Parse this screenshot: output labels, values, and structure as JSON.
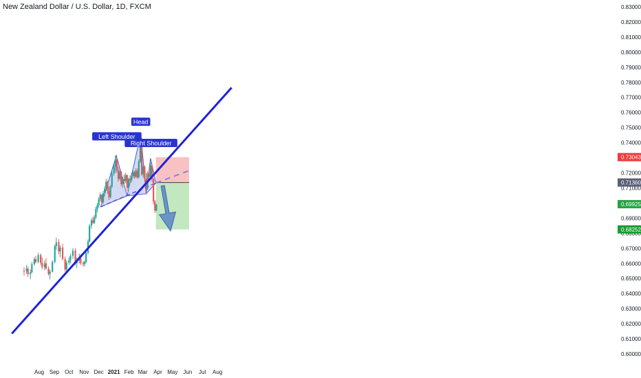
{
  "header": {
    "title": "New Zealand Dollar / U.S. Dollar, 1D, FXCM"
  },
  "colors": {
    "up": "#26a69a",
    "down": "#ef5350",
    "trendline": "#1e22d6",
    "pattern_fill": "#c5cdf0",
    "pattern_stroke": "#4a55d6",
    "stop_zone": "#f8b7b7",
    "target_zone": "#b8e3b4",
    "arrow": "#5b86c6"
  },
  "chart_data": {
    "type": "candlestick",
    "ylim": [
      0.595,
      0.833
    ],
    "yticks": [
      "0.83000",
      "0.82000",
      "0.81000",
      "0.80000",
      "0.79000",
      "0.78000",
      "0.77000",
      "0.76000",
      "0.75000",
      "0.74000",
      "0.73000",
      "0.72000",
      "0.71000",
      "0.70000",
      "0.69000",
      "0.68000",
      "0.67000",
      "0.66000",
      "0.65000",
      "0.64000",
      "0.63000",
      "0.62000",
      "0.61000",
      "0.60000"
    ],
    "xticks": [
      {
        "label": "Aug",
        "date": "2020-08-01"
      },
      {
        "label": "Sep",
        "date": "2020-09-01"
      },
      {
        "label": "Oct",
        "date": "2020-10-01"
      },
      {
        "label": "Nov",
        "date": "2020-11-01"
      },
      {
        "label": "Dec",
        "date": "2020-12-01"
      },
      {
        "label": "2021",
        "date": "2021-01-01"
      },
      {
        "label": "Feb",
        "date": "2021-02-01"
      },
      {
        "label": "Mar",
        "date": "2021-03-01"
      },
      {
        "label": "Apr",
        "date": "2021-04-01"
      },
      {
        "label": "May",
        "date": "2021-05-01"
      },
      {
        "label": "Jun",
        "date": "2021-06-01"
      },
      {
        "label": "Jul",
        "date": "2021-07-01"
      },
      {
        "label": "Aug",
        "date": "2021-08-01"
      }
    ],
    "price_badges": [
      {
        "label": "0.73043",
        "value": 0.73043,
        "color": "#ef3b3b"
      },
      {
        "label": "0.71360",
        "value": 0.7136,
        "color": "#596076"
      },
      {
        "label": "0.69925",
        "value": 0.69925,
        "color": "#26a343"
      },
      {
        "label": "0.68252",
        "value": 0.68252,
        "color": "#1a9e32"
      }
    ],
    "pattern_labels": [
      {
        "text": "Left Shoulder",
        "date": "2021-01-07",
        "value": 0.7442
      },
      {
        "text": "Head",
        "date": "2021-02-25",
        "value": 0.7539
      },
      {
        "text": "Right Shoulder",
        "date": "2021-03-18",
        "value": 0.7398
      }
    ],
    "pattern_points": [
      {
        "date": "2020-12-05",
        "value": 0.6975
      },
      {
        "date": "2021-01-06",
        "value": 0.7315
      },
      {
        "date": "2021-01-28",
        "value": 0.7048
      },
      {
        "date": "2021-02-25",
        "value": 0.7459
      },
      {
        "date": "2021-03-08",
        "value": 0.7062
      },
      {
        "date": "2021-03-17",
        "value": 0.7297
      },
      {
        "date": "2021-03-28",
        "value": 0.7133
      }
    ],
    "neckline": [
      {
        "date": "2020-12-05",
        "value": 0.6975
      },
      {
        "date": "2021-03-28",
        "value": 0.7133
      }
    ],
    "neckline_extension": [
      {
        "date": "2021-03-28",
        "value": 0.7133
      },
      {
        "date": "2021-06-04",
        "value": 0.7215
      }
    ],
    "trendline": [
      {
        "date": "2020-06-06",
        "value": 0.6135
      },
      {
        "date": "2021-08-30",
        "value": 0.7765
      }
    ],
    "stop_zone": {
      "from": "2021-03-28",
      "to": "2021-06-04",
      "low": 0.7136,
      "high": 0.73043
    },
    "target_zone": {
      "from": "2021-03-28",
      "to": "2021-06-04",
      "low": 0.68252,
      "high": 0.7136
    },
    "projection_arrow": [
      {
        "date": "2021-04-11",
        "value": 0.7115
      },
      {
        "date": "2021-04-27",
        "value": 0.6815
      }
    ],
    "candles": [
      {
        "date": "2020-07-01",
        "open": 0.655,
        "high": 0.6575,
        "low": 0.652,
        "close": 0.6548
      },
      {
        "date": "2020-07-06",
        "open": 0.6548,
        "high": 0.659,
        "low": 0.653,
        "close": 0.6565
      },
      {
        "date": "2020-07-09",
        "open": 0.6565,
        "high": 0.658,
        "low": 0.651,
        "close": 0.6528
      },
      {
        "date": "2020-07-14",
        "open": 0.6528,
        "high": 0.656,
        "low": 0.6495,
        "close": 0.6542
      },
      {
        "date": "2020-07-17",
        "open": 0.6542,
        "high": 0.661,
        "low": 0.6535,
        "close": 0.6595
      },
      {
        "date": "2020-07-22",
        "open": 0.6595,
        "high": 0.664,
        "low": 0.6585,
        "close": 0.6628
      },
      {
        "date": "2020-07-25",
        "open": 0.6628,
        "high": 0.665,
        "low": 0.66,
        "close": 0.661
      },
      {
        "date": "2020-07-30",
        "open": 0.661,
        "high": 0.667,
        "low": 0.66,
        "close": 0.6655
      },
      {
        "date": "2020-08-04",
        "open": 0.6655,
        "high": 0.6665,
        "low": 0.659,
        "close": 0.6605
      },
      {
        "date": "2020-08-07",
        "open": 0.6605,
        "high": 0.664,
        "low": 0.656,
        "close": 0.6575
      },
      {
        "date": "2020-08-12",
        "open": 0.6575,
        "high": 0.662,
        "low": 0.6555,
        "close": 0.66
      },
      {
        "date": "2020-08-15",
        "open": 0.66,
        "high": 0.6635,
        "low": 0.656,
        "close": 0.6565
      },
      {
        "date": "2020-08-20",
        "open": 0.6565,
        "high": 0.658,
        "low": 0.652,
        "close": 0.653
      },
      {
        "date": "2020-08-23",
        "open": 0.653,
        "high": 0.656,
        "low": 0.6495,
        "close": 0.6545
      },
      {
        "date": "2020-08-28",
        "open": 0.6545,
        "high": 0.662,
        "low": 0.654,
        "close": 0.661
      },
      {
        "date": "2020-09-02",
        "open": 0.661,
        "high": 0.6725,
        "low": 0.66,
        "close": 0.6715
      },
      {
        "date": "2020-09-05",
        "open": 0.6715,
        "high": 0.677,
        "low": 0.669,
        "close": 0.674
      },
      {
        "date": "2020-09-10",
        "open": 0.674,
        "high": 0.676,
        "low": 0.666,
        "close": 0.668
      },
      {
        "date": "2020-09-13",
        "open": 0.668,
        "high": 0.672,
        "low": 0.664,
        "close": 0.6705
      },
      {
        "date": "2020-09-18",
        "open": 0.6705,
        "high": 0.673,
        "low": 0.662,
        "close": 0.663
      },
      {
        "date": "2020-09-23",
        "open": 0.663,
        "high": 0.6645,
        "low": 0.6545,
        "close": 0.656
      },
      {
        "date": "2020-09-26",
        "open": 0.656,
        "high": 0.662,
        "low": 0.6545,
        "close": 0.6605
      },
      {
        "date": "2020-10-01",
        "open": 0.6605,
        "high": 0.664,
        "low": 0.659,
        "close": 0.662
      },
      {
        "date": "2020-10-04",
        "open": 0.662,
        "high": 0.6665,
        "low": 0.66,
        "close": 0.665
      },
      {
        "date": "2020-10-09",
        "open": 0.665,
        "high": 0.67,
        "low": 0.663,
        "close": 0.6685
      },
      {
        "date": "2020-10-14",
        "open": 0.6685,
        "high": 0.67,
        "low": 0.659,
        "close": 0.66
      },
      {
        "date": "2020-10-17",
        "open": 0.66,
        "high": 0.664,
        "low": 0.657,
        "close": 0.662
      },
      {
        "date": "2020-10-22",
        "open": 0.662,
        "high": 0.6665,
        "low": 0.66,
        "close": 0.6635
      },
      {
        "date": "2020-10-25",
        "open": 0.6635,
        "high": 0.666,
        "low": 0.659,
        "close": 0.66
      },
      {
        "date": "2020-10-30",
        "open": 0.66,
        "high": 0.6615,
        "low": 0.658,
        "close": 0.6595
      },
      {
        "date": "2020-11-02",
        "open": 0.6595,
        "high": 0.662,
        "low": 0.658,
        "close": 0.661
      },
      {
        "date": "2020-11-05",
        "open": 0.661,
        "high": 0.668,
        "low": 0.66,
        "close": 0.667
      },
      {
        "date": "2020-11-09",
        "open": 0.667,
        "high": 0.676,
        "low": 0.666,
        "close": 0.6745
      },
      {
        "date": "2020-11-12",
        "open": 0.6745,
        "high": 0.686,
        "low": 0.674,
        "close": 0.685
      },
      {
        "date": "2020-11-16",
        "open": 0.685,
        "high": 0.69,
        "low": 0.683,
        "close": 0.6885
      },
      {
        "date": "2020-11-19",
        "open": 0.6885,
        "high": 0.691,
        "low": 0.686,
        "close": 0.687
      },
      {
        "date": "2020-11-22",
        "open": 0.687,
        "high": 0.692,
        "low": 0.686,
        "close": 0.6905
      },
      {
        "date": "2020-11-25",
        "open": 0.6905,
        "high": 0.6975,
        "low": 0.6895,
        "close": 0.696
      },
      {
        "date": "2020-11-28",
        "open": 0.696,
        "high": 0.7,
        "low": 0.694,
        "close": 0.6985
      },
      {
        "date": "2020-12-01",
        "open": 0.6985,
        "high": 0.704,
        "low": 0.697,
        "close": 0.7025
      },
      {
        "date": "2020-12-04",
        "open": 0.7025,
        "high": 0.707,
        "low": 0.701,
        "close": 0.7055
      },
      {
        "date": "2020-12-07",
        "open": 0.7055,
        "high": 0.706,
        "low": 0.699,
        "close": 0.7005
      },
      {
        "date": "2020-12-10",
        "open": 0.7005,
        "high": 0.708,
        "low": 0.6995,
        "close": 0.7065
      },
      {
        "date": "2020-12-13",
        "open": 0.7065,
        "high": 0.711,
        "low": 0.705,
        "close": 0.7095
      },
      {
        "date": "2020-12-16",
        "open": 0.7095,
        "high": 0.716,
        "low": 0.708,
        "close": 0.714
      },
      {
        "date": "2020-12-19",
        "open": 0.714,
        "high": 0.715,
        "low": 0.706,
        "close": 0.708
      },
      {
        "date": "2020-12-22",
        "open": 0.708,
        "high": 0.711,
        "low": 0.702,
        "close": 0.704
      },
      {
        "date": "2020-12-25",
        "open": 0.704,
        "high": 0.712,
        "low": 0.703,
        "close": 0.711
      },
      {
        "date": "2020-12-28",
        "open": 0.711,
        "high": 0.721,
        "low": 0.71,
        "close": 0.7195
      },
      {
        "date": "2021-01-01",
        "open": 0.7195,
        "high": 0.726,
        "low": 0.718,
        "close": 0.724
      },
      {
        "date": "2021-01-04",
        "open": 0.724,
        "high": 0.7315,
        "low": 0.72,
        "close": 0.729
      },
      {
        "date": "2021-01-07",
        "open": 0.729,
        "high": 0.73,
        "low": 0.72,
        "close": 0.7215
      },
      {
        "date": "2021-01-10",
        "open": 0.7215,
        "high": 0.724,
        "low": 0.714,
        "close": 0.716
      },
      {
        "date": "2021-01-13",
        "open": 0.716,
        "high": 0.722,
        "low": 0.715,
        "close": 0.7205
      },
      {
        "date": "2021-01-16",
        "open": 0.7205,
        "high": 0.721,
        "low": 0.711,
        "close": 0.7125
      },
      {
        "date": "2021-01-19",
        "open": 0.7125,
        "high": 0.7175,
        "low": 0.71,
        "close": 0.716
      },
      {
        "date": "2021-01-22",
        "open": 0.716,
        "high": 0.719,
        "low": 0.712,
        "close": 0.7145
      },
      {
        "date": "2021-01-25",
        "open": 0.7145,
        "high": 0.72,
        "low": 0.713,
        "close": 0.7185
      },
      {
        "date": "2021-01-28",
        "open": 0.7185,
        "high": 0.719,
        "low": 0.708,
        "close": 0.71
      },
      {
        "date": "2021-01-31",
        "open": 0.71,
        "high": 0.717,
        "low": 0.709,
        "close": 0.716
      },
      {
        "date": "2021-02-03",
        "open": 0.716,
        "high": 0.7185,
        "low": 0.714,
        "close": 0.715
      },
      {
        "date": "2021-02-06",
        "open": 0.715,
        "high": 0.72,
        "low": 0.7135,
        "close": 0.718
      },
      {
        "date": "2021-02-09",
        "open": 0.718,
        "high": 0.722,
        "low": 0.7165,
        "close": 0.7205
      },
      {
        "date": "2021-02-12",
        "open": 0.7205,
        "high": 0.7215,
        "low": 0.716,
        "close": 0.7175
      },
      {
        "date": "2021-02-15",
        "open": 0.7175,
        "high": 0.723,
        "low": 0.7165,
        "close": 0.7215
      },
      {
        "date": "2021-02-18",
        "open": 0.7215,
        "high": 0.723,
        "low": 0.716,
        "close": 0.717
      },
      {
        "date": "2021-02-21",
        "open": 0.717,
        "high": 0.729,
        "low": 0.7165,
        "close": 0.7275
      },
      {
        "date": "2021-02-24",
        "open": 0.7275,
        "high": 0.7465,
        "low": 0.7265,
        "close": 0.742
      },
      {
        "date": "2021-02-27",
        "open": 0.742,
        "high": 0.743,
        "low": 0.718,
        "close": 0.719
      },
      {
        "date": "2021-03-02",
        "open": 0.719,
        "high": 0.726,
        "low": 0.717,
        "close": 0.724
      },
      {
        "date": "2021-03-05",
        "open": 0.724,
        "high": 0.725,
        "low": 0.714,
        "close": 0.716
      },
      {
        "date": "2021-03-08",
        "open": 0.716,
        "high": 0.72,
        "low": 0.706,
        "close": 0.71
      },
      {
        "date": "2021-03-11",
        "open": 0.71,
        "high": 0.721,
        "low": 0.709,
        "close": 0.7195
      },
      {
        "date": "2021-03-14",
        "open": 0.7195,
        "high": 0.723,
        "low": 0.715,
        "close": 0.7175
      },
      {
        "date": "2021-03-17",
        "open": 0.7175,
        "high": 0.727,
        "low": 0.716,
        "close": 0.725
      },
      {
        "date": "2021-03-20",
        "open": 0.725,
        "high": 0.726,
        "low": 0.714,
        "close": 0.716
      },
      {
        "date": "2021-03-23",
        "open": 0.716,
        "high": 0.7165,
        "low": 0.699,
        "close": 0.701
      },
      {
        "date": "2021-03-26",
        "open": 0.701,
        "high": 0.702,
        "low": 0.6935,
        "close": 0.695
      },
      {
        "date": "2021-03-29",
        "open": 0.695,
        "high": 0.6995,
        "low": 0.6945,
        "close": 0.699
      }
    ]
  }
}
